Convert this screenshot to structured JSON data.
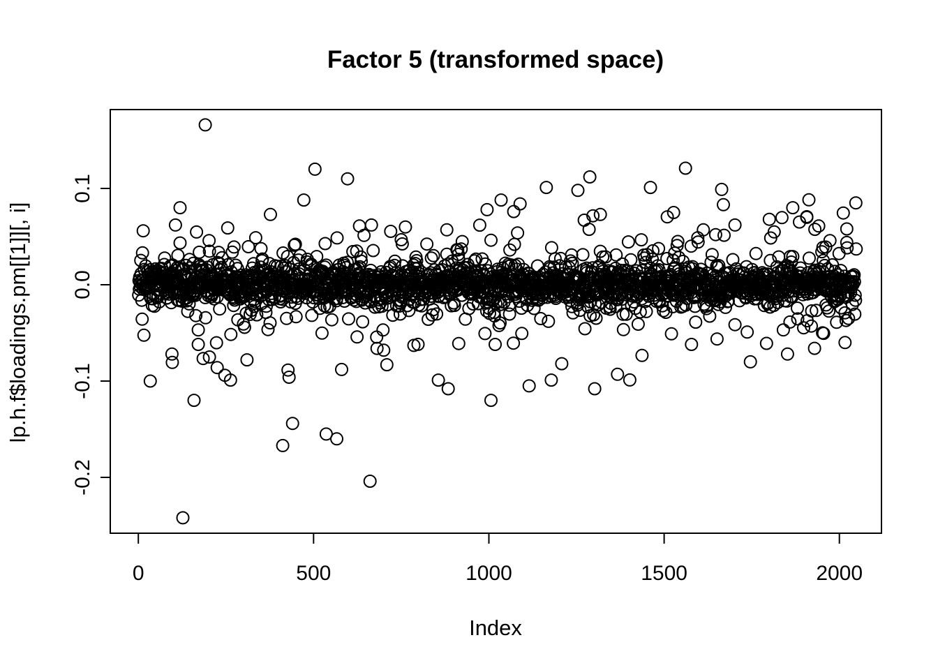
{
  "chart_data": {
    "type": "scatter",
    "title": "Factor 5 (transformed space)",
    "xlabel": "Index",
    "ylabel": "lp.h.f$loadings.pm[[1]][, i]",
    "n_points": 2048,
    "xlim": [
      -80,
      2120
    ],
    "ylim": [
      -0.258,
      0.1819
    ],
    "grid": false,
    "x_axis": {
      "ticks": [
        0,
        500,
        1000,
        1500,
        2000
      ],
      "tick_labels": [
        "0",
        "500",
        "1000",
        "1500",
        "2000"
      ]
    },
    "y_axis": {
      "ticks": [
        -0.2,
        -0.1,
        0,
        0.1
      ],
      "tick_labels": [
        "-0.2",
        "-0.1",
        "0.0",
        "0.1"
      ]
    },
    "style": {
      "background": "#ffffff",
      "axis_color": "#000000",
      "point_color": "#000000",
      "point_radius": 8.5,
      "point_stroke_width": 2,
      "marker": "open-circle"
    },
    "generator": {
      "seed": 20,
      "core_fraction": 0.745,
      "core_sd": 0.0095,
      "mid_fraction": 0.195,
      "mid_sd": 0.021,
      "wide_fraction": 0.06,
      "wide_sd": 0.038,
      "clamp_abs": 0.1,
      "region_boosts": [
        {
          "from": 120,
          "to": 720,
          "neg_mult": 1.3
        },
        {
          "from": 1050,
          "to": 1450,
          "neg_mult": 1.15
        },
        {
          "from": 1250,
          "to": 2048,
          "pos_mult": 1.15
        },
        {
          "from": 1780,
          "to": 2048,
          "mult": 1.45
        }
      ]
    },
    "outliers": [
      [
        191,
        0.166
      ],
      [
        504,
        0.12
      ],
      [
        597,
        0.11
      ],
      [
        472,
        0.088
      ],
      [
        377,
        0.073
      ],
      [
        119,
        0.08
      ],
      [
        106,
        0.062
      ],
      [
        255,
        0.059
      ],
      [
        631,
        0.061
      ],
      [
        665,
        0.062
      ],
      [
        762,
        0.06
      ],
      [
        14,
        0.056
      ],
      [
        448,
        0.042
      ],
      [
        880,
        0.057
      ],
      [
        995,
        0.078
      ],
      [
        1035,
        0.088
      ],
      [
        1071,
        0.076
      ],
      [
        1089,
        0.084
      ],
      [
        1164,
        0.101
      ],
      [
        1288,
        0.112
      ],
      [
        1254,
        0.098
      ],
      [
        1272,
        0.067
      ],
      [
        1318,
        0.073
      ],
      [
        1461,
        0.101
      ],
      [
        1527,
        0.075
      ],
      [
        1561,
        0.121
      ],
      [
        1612,
        0.057
      ],
      [
        1664,
        0.099
      ],
      [
        1702,
        0.062
      ],
      [
        1800,
        0.068
      ],
      [
        1867,
        0.08
      ],
      [
        1907,
        0.07
      ],
      [
        1941,
        0.061
      ],
      [
        2021,
        0.058
      ],
      [
        127,
        -0.242
      ],
      [
        661,
        -0.204
      ],
      [
        412,
        -0.167
      ],
      [
        440,
        -0.144
      ],
      [
        536,
        -0.155
      ],
      [
        566,
        -0.16
      ],
      [
        159,
        -0.12
      ],
      [
        34,
        -0.1
      ],
      [
        263,
        -0.099
      ],
      [
        247,
        -0.094
      ],
      [
        203,
        -0.075
      ],
      [
        225,
        -0.086
      ],
      [
        171,
        -0.062
      ],
      [
        96,
        -0.072
      ],
      [
        310,
        -0.078
      ],
      [
        430,
        -0.096
      ],
      [
        580,
        -0.088
      ],
      [
        700,
        -0.068
      ],
      [
        786,
        -0.063
      ],
      [
        856,
        -0.099
      ],
      [
        884,
        -0.108
      ],
      [
        914,
        -0.061
      ],
      [
        1006,
        -0.12
      ],
      [
        1018,
        -0.062
      ],
      [
        1115,
        -0.105
      ],
      [
        1178,
        -0.099
      ],
      [
        1208,
        -0.082
      ],
      [
        1302,
        -0.108
      ],
      [
        1367,
        -0.093
      ],
      [
        1578,
        -0.062
      ],
      [
        1746,
        -0.08
      ],
      [
        1852,
        -0.072
      ],
      [
        1929,
        -0.066
      ],
      [
        2016,
        -0.06
      ]
    ]
  }
}
